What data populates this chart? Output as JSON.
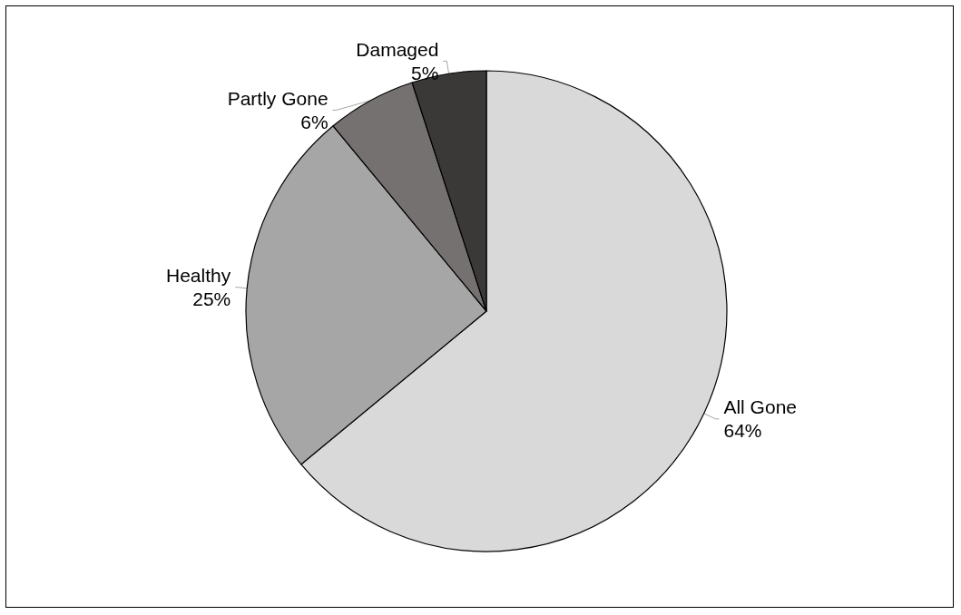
{
  "chart_data": {
    "type": "pie",
    "categories": [
      "All Gone",
      "Healthy",
      "Partly Gone",
      "Damaged"
    ],
    "values": [
      64,
      25,
      6,
      5
    ],
    "value_labels": [
      "64%",
      "25%",
      "6%",
      "5%"
    ],
    "colors": [
      "#d9d9d9",
      "#a6a6a6",
      "#767171",
      "#3b3838"
    ],
    "legend": false
  }
}
